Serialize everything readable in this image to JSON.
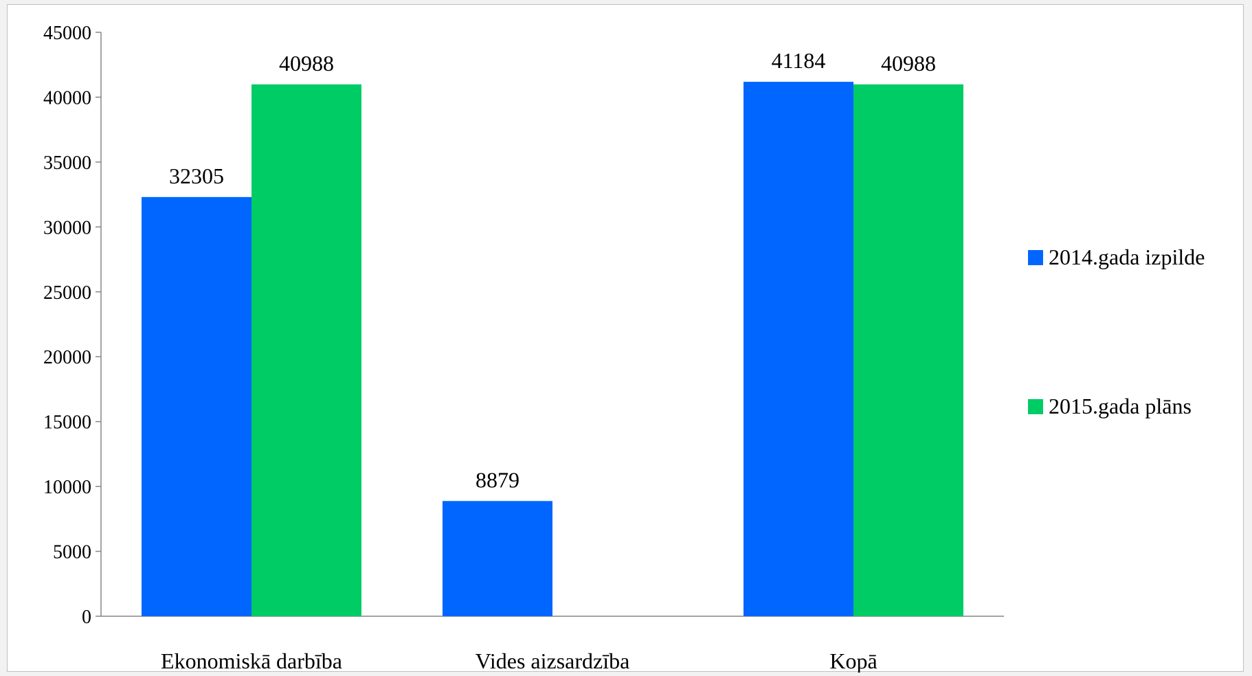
{
  "chart_data": {
    "type": "bar",
    "title": "",
    "xlabel": "",
    "ylabel": "",
    "categories": [
      "Ekonomiskā darbība",
      "Vides aizsardzība",
      "Kopā"
    ],
    "series": [
      {
        "name": "2014.gada izpilde",
        "color": "#0066ff",
        "values": [
          32305,
          8879,
          41184
        ]
      },
      {
        "name": "2015.gada plāns",
        "color": "#00cc66",
        "values": [
          40988,
          null,
          40988
        ]
      }
    ],
    "ylim": [
      0,
      45000
    ],
    "yticks": [
      0,
      5000,
      10000,
      15000,
      20000,
      25000,
      30000,
      35000,
      40000,
      45000
    ],
    "grid": false,
    "legend_position": "right"
  }
}
